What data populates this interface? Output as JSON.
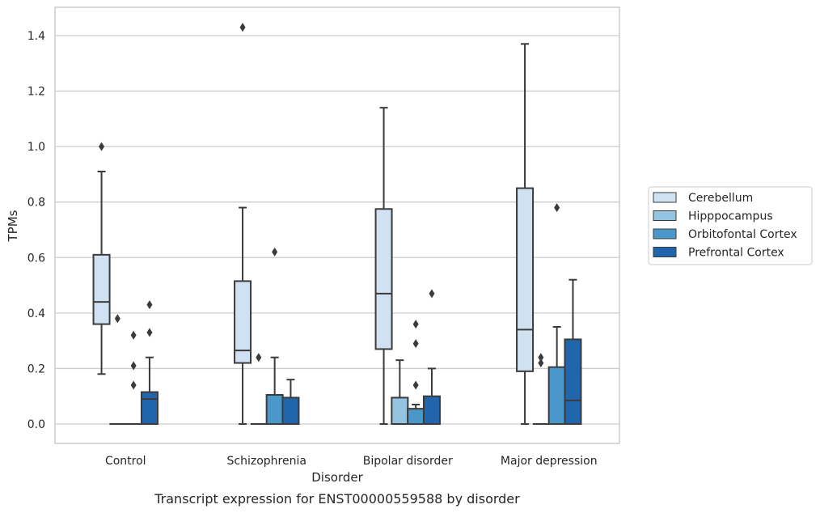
{
  "chart_data": {
    "type": "box",
    "title": "",
    "caption": "Transcript expression for ENST00000559588 by disorder",
    "xlabel": "Disorder",
    "ylabel": "TPMs",
    "ylim": [
      -0.07,
      1.5
    ],
    "yticks": [
      0.0,
      0.2,
      0.4,
      0.6,
      0.8,
      1.0,
      1.2,
      1.4
    ],
    "ytick_labels": [
      "0.0",
      "0.2",
      "0.4",
      "0.6",
      "0.8",
      "1.0",
      "1.2",
      "1.4"
    ],
    "grid": true,
    "legend_position": "right",
    "categories": [
      "Control",
      "Schizophrenia",
      "Bipolar disorder",
      "Major depression"
    ],
    "series": [
      {
        "name": "Cerebellum",
        "color": "#d0e1f2",
        "boxes": [
          {
            "q1": 0.36,
            "median": 0.44,
            "q3": 0.61,
            "whisker_low": 0.18,
            "whisker_high": 0.91,
            "outliers": [
              1.0
            ]
          },
          {
            "q1": 0.22,
            "median": 0.265,
            "q3": 0.515,
            "whisker_low": 0.0,
            "whisker_high": 0.78,
            "outliers": [
              1.43
            ]
          },
          {
            "q1": 0.27,
            "median": 0.47,
            "q3": 0.775,
            "whisker_low": 0.0,
            "whisker_high": 1.14,
            "outliers": []
          },
          {
            "q1": 0.19,
            "median": 0.34,
            "q3": 0.85,
            "whisker_low": 0.0,
            "whisker_high": 1.37,
            "outliers": []
          }
        ]
      },
      {
        "name": "Hipppocampus",
        "color": "#94c4df",
        "boxes": [
          {
            "q1": 0.0,
            "median": 0.0,
            "q3": 0.0,
            "whisker_low": 0.0,
            "whisker_high": 0.0,
            "outliers": [
              0.38
            ]
          },
          {
            "q1": 0.0,
            "median": 0.0,
            "q3": 0.0,
            "whisker_low": 0.0,
            "whisker_high": 0.0,
            "outliers": [
              0.24
            ]
          },
          {
            "q1": 0.0,
            "median": 0.0,
            "q3": 0.095,
            "whisker_low": 0.0,
            "whisker_high": 0.23,
            "outliers": []
          },
          {
            "q1": 0.0,
            "median": 0.0,
            "q3": 0.0,
            "whisker_low": 0.0,
            "whisker_high": 0.0,
            "outliers": [
              0.22,
              0.24
            ]
          }
        ]
      },
      {
        "name": "Orbitofontal Cortex",
        "color": "#4a98c9",
        "boxes": [
          {
            "q1": 0.0,
            "median": 0.0,
            "q3": 0.0,
            "whisker_low": 0.0,
            "whisker_high": 0.0,
            "outliers": [
              0.14,
              0.21,
              0.32
            ]
          },
          {
            "q1": 0.0,
            "median": 0.0,
            "q3": 0.105,
            "whisker_low": 0.0,
            "whisker_high": 0.24,
            "outliers": [
              0.62
            ]
          },
          {
            "q1": 0.0,
            "median": 0.0,
            "q3": 0.055,
            "whisker_low": 0.0,
            "whisker_high": 0.07,
            "outliers": [
              0.14,
              0.29,
              0.36
            ]
          },
          {
            "q1": 0.0,
            "median": 0.0,
            "q3": 0.205,
            "whisker_low": 0.0,
            "whisker_high": 0.35,
            "outliers": [
              0.78
            ]
          }
        ]
      },
      {
        "name": "Prefrontal Cortex",
        "color": "#2166ac",
        "boxes": [
          {
            "q1": 0.0,
            "median": 0.09,
            "q3": 0.115,
            "whisker_low": 0.0,
            "whisker_high": 0.24,
            "outliers": [
              0.33,
              0.43
            ]
          },
          {
            "q1": 0.0,
            "median": 0.0,
            "q3": 0.095,
            "whisker_low": 0.0,
            "whisker_high": 0.16,
            "outliers": []
          },
          {
            "q1": 0.0,
            "median": 0.0,
            "q3": 0.1,
            "whisker_low": 0.0,
            "whisker_high": 0.2,
            "outliers": [
              0.47
            ]
          },
          {
            "q1": 0.0,
            "median": 0.085,
            "q3": 0.305,
            "whisker_low": 0.0,
            "whisker_high": 0.52,
            "outliers": []
          }
        ]
      }
    ]
  }
}
